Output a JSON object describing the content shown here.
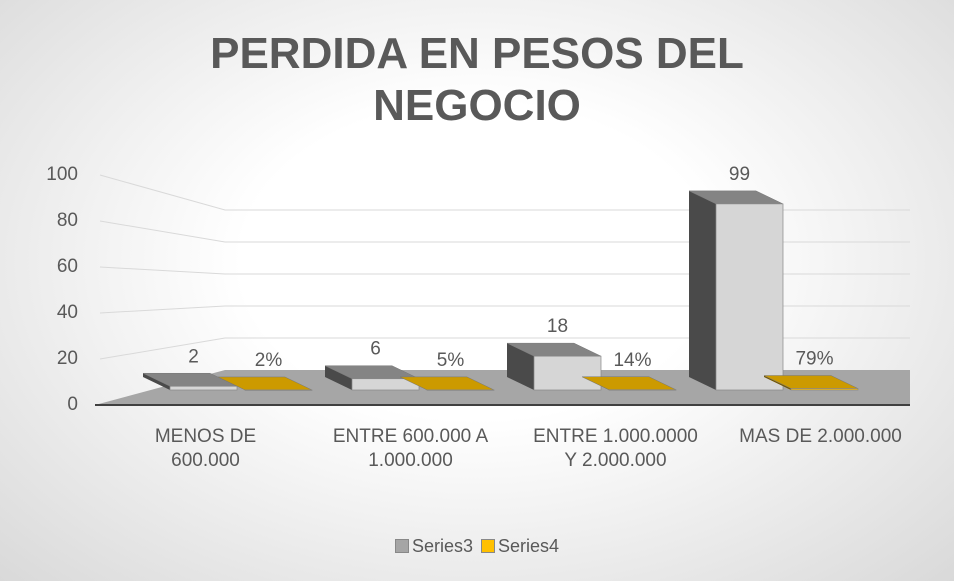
{
  "chart_data": {
    "type": "bar3d",
    "title": "PERDIDA EN PESOS DEL NEGOCIO",
    "categories": [
      "MENOS DE 600.000",
      "ENTRE 600.000 A 1.000.000",
      "ENTRE 1.000.0000 Y 2.000.000",
      "MAS DE 2.000.000"
    ],
    "series": [
      {
        "name": "Series3",
        "color": "#a5a5a5",
        "values": [
          2,
          6,
          18,
          99
        ]
      },
      {
        "name": "Series4",
        "color": "#ffc000",
        "values": [
          0.02,
          0.05,
          0.14,
          0.79
        ],
        "value_labels": [
          "2%",
          "5%",
          "14%",
          "79%"
        ]
      }
    ],
    "ylim": [
      0,
      100
    ],
    "yticks": [
      0,
      20,
      40,
      60,
      80,
      100
    ],
    "grid": true,
    "legend": "bottom"
  }
}
